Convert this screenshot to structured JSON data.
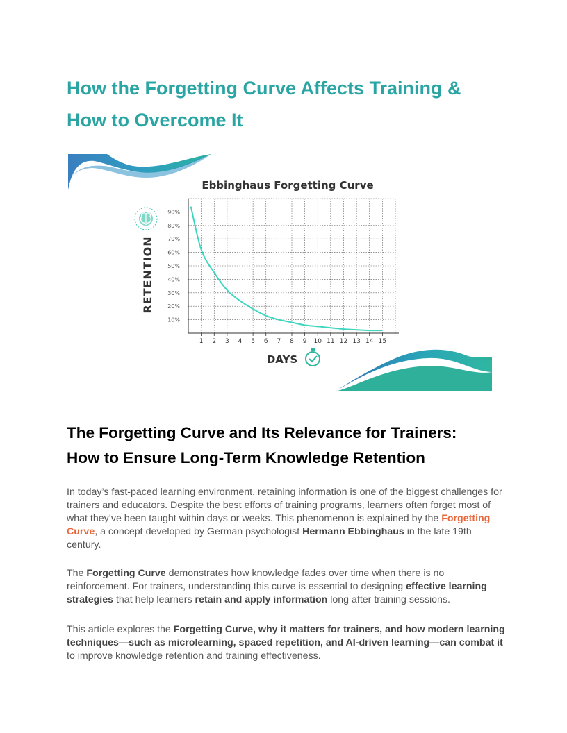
{
  "title": {
    "line1": "How the Forgetting Curve Affects Training &",
    "line2": "How to Overcome It"
  },
  "figure": {
    "chart_data": {
      "type": "line",
      "title": "Ebbinghaus Forgetting Curve",
      "xlabel": "DAYS",
      "ylabel": "RETENTION",
      "x_ticks": [
        "1",
        "2",
        "3",
        "4",
        "5",
        "6",
        "7",
        "8",
        "9",
        "10",
        "11",
        "12",
        "13",
        "14",
        "15"
      ],
      "y_ticks": [
        "10%",
        "20%",
        "30%",
        "40%",
        "50%",
        "60%",
        "70%",
        "80%",
        "90%"
      ],
      "xlim": [
        0,
        16
      ],
      "ylim": [
        0,
        100
      ],
      "grid": true,
      "series": [
        {
          "x": [
            0.2,
            1,
            2,
            3,
            4,
            5,
            6,
            7,
            8,
            9,
            10,
            11,
            12,
            13,
            14,
            15
          ],
          "y": [
            94,
            62,
            45,
            32,
            24,
            18,
            13,
            10,
            8,
            6,
            5,
            4,
            3,
            2.5,
            2,
            2
          ],
          "color": "#3fd6c0"
        }
      ]
    },
    "icons": [
      "brain-icon",
      "clock-icon"
    ],
    "colors": {
      "wave_teal": "#2aaea0",
      "wave_blue": "#3a7fc0",
      "curve": "#3fd6c0"
    }
  },
  "section": {
    "heading_line1": "The Forgetting Curve and Its Relevance for Trainers:",
    "heading_line2": "How to Ensure Long-Term Knowledge Retention"
  },
  "p1": {
    "t1": "In today’s fast-paced learning environment, retaining information is one of the biggest challenges for trainers and educators. Despite the best efforts of training programs, learners often forget most of what they’ve been taught within days or weeks. This phenomenon is explained by the ",
    "link": "Forgetting Curve",
    "t2": ", a concept developed by German psychologist ",
    "b1": "Hermann Ebbinghaus",
    "t3": " in the late 19th century."
  },
  "p2": {
    "t1": "The ",
    "b1": "Forgetting Curve",
    "t2": " demonstrates how knowledge fades over time when there is no reinforcement. For trainers, understanding this curve is essential to designing ",
    "b2": "effective learning strategies",
    "t3": " that help learners ",
    "b3": "retain and apply information",
    "t4": " long after training sessions."
  },
  "p3": {
    "t1": "This article explores the ",
    "b1": "Forgetting Curve, why it matters for trainers, and how modern learning techniques—such as microlearning, spaced repetition, and AI-driven learning—can combat it",
    "t2": " to improve knowledge retention and training effectiveness."
  }
}
